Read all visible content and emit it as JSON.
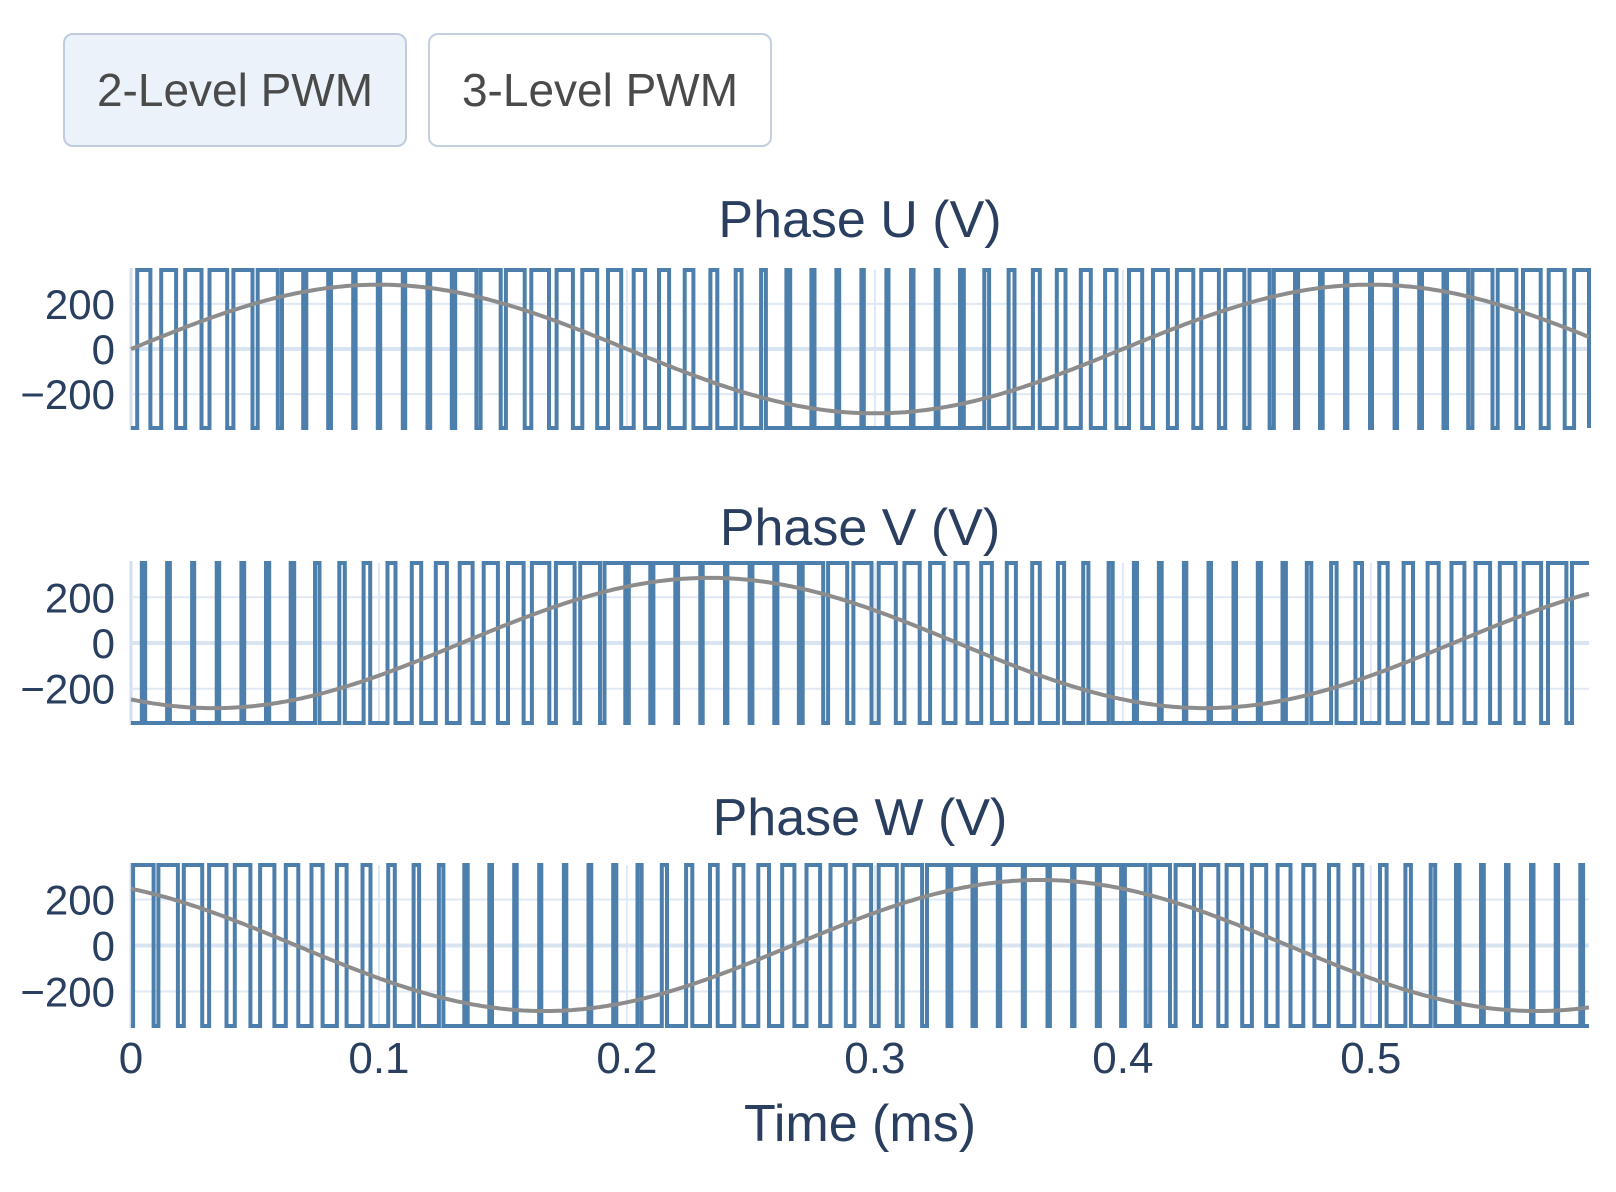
{
  "toolbar": {
    "buttons": [
      {
        "label": "2-Level PWM",
        "active": true
      },
      {
        "label": "3-Level PWM",
        "active": false
      }
    ]
  },
  "xlabel": "Time (ms)",
  "colors": {
    "pwm_line": "#4d7fac",
    "reference_line": "#8c8c8c",
    "grid": "#dfe8f4",
    "zero_grid": "#d9e4f2",
    "axis_zero_line": "#d3dfef",
    "title_text": "#2a3f5f",
    "tick_text": "#2a3f5f",
    "button_active_bg": "#ebf2fa",
    "button_border": "#c3cfe0",
    "button_text": "#4a4a4a"
  },
  "chart_data": [
    {
      "type": "line",
      "title": "Phase U (V)",
      "xlabel": "Time (ms)",
      "x_range_ms": [
        0,
        0.588
      ],
      "y_range_v": [
        -350,
        350
      ],
      "x_ticks_ms": [
        0,
        0.1,
        0.2,
        0.3,
        0.4,
        0.5
      ],
      "x_tick_labels": [
        "0",
        "0.1",
        "0.2",
        "0.3",
        "0.4",
        "0.5"
      ],
      "y_ticks_v": [
        200,
        0,
        -200
      ],
      "y_tick_labels": [
        "200",
        "0",
        "−200"
      ],
      "grid": true,
      "legend": false,
      "series": [
        {
          "name": "2-level PWM phase voltage",
          "kind": "pwm_square_2level",
          "levels_v": [
            -350,
            350
          ],
          "carrier_period_ms": 0.01,
          "carrier_frequency_khz": 100
        },
        {
          "name": "sinusoidal reference",
          "kind": "sine",
          "amplitude_v": 285,
          "period_ms": 0.4,
          "phase_deg": 0
        }
      ]
    },
    {
      "type": "line",
      "title": "Phase V (V)",
      "xlabel": "Time (ms)",
      "x_range_ms": [
        0,
        0.588
      ],
      "y_range_v": [
        -350,
        350
      ],
      "x_ticks_ms": [
        0,
        0.1,
        0.2,
        0.3,
        0.4,
        0.5
      ],
      "x_tick_labels": [
        "0",
        "0.1",
        "0.2",
        "0.3",
        "0.4",
        "0.5"
      ],
      "y_ticks_v": [
        200,
        0,
        -200
      ],
      "y_tick_labels": [
        "200",
        "0",
        "−200"
      ],
      "grid": true,
      "legend": false,
      "series": [
        {
          "name": "2-level PWM phase voltage",
          "kind": "pwm_square_2level",
          "levels_v": [
            -350,
            350
          ],
          "carrier_period_ms": 0.01,
          "carrier_frequency_khz": 100
        },
        {
          "name": "sinusoidal reference",
          "kind": "sine",
          "amplitude_v": 285,
          "period_ms": 0.4,
          "phase_deg": -120
        }
      ]
    },
    {
      "type": "line",
      "title": "Phase W (V)",
      "xlabel": "Time (ms)",
      "x_range_ms": [
        0,
        0.588
      ],
      "y_range_v": [
        -350,
        350
      ],
      "x_ticks_ms": [
        0,
        0.1,
        0.2,
        0.3,
        0.4,
        0.5
      ],
      "x_tick_labels": [
        "0",
        "0.1",
        "0.2",
        "0.3",
        "0.4",
        "0.5"
      ],
      "y_ticks_v": [
        200,
        0,
        -200
      ],
      "y_tick_labels": [
        "200",
        "0",
        "−200"
      ],
      "grid": true,
      "legend": false,
      "series": [
        {
          "name": "2-level PWM phase voltage",
          "kind": "pwm_square_2level",
          "levels_v": [
            -350,
            350
          ],
          "carrier_period_ms": 0.01,
          "carrier_frequency_khz": 100
        },
        {
          "name": "sinusoidal reference",
          "kind": "sine",
          "amplitude_v": 285,
          "period_ms": 0.4,
          "phase_deg": 120
        }
      ]
    }
  ]
}
